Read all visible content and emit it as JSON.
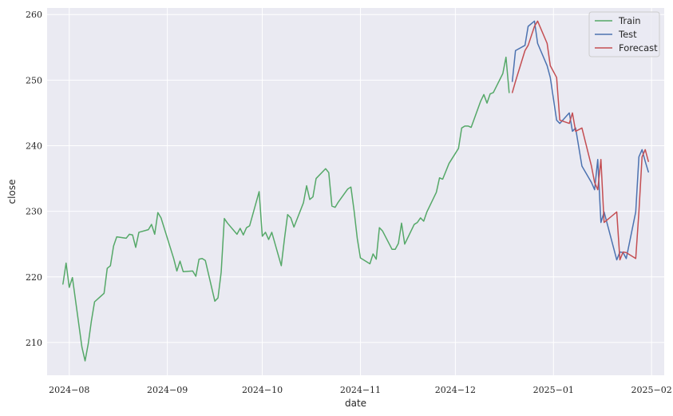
{
  "chart_data": {
    "type": "line",
    "title": "",
    "xlabel": "date",
    "ylabel": "close",
    "grid": true,
    "legend_placement": "top-right",
    "xlim": [
      "2024-07-25",
      "2025-02-05"
    ],
    "ylim": [
      205,
      261
    ],
    "x_ticks": [
      {
        "date": "2024-08-01",
        "label": "2024−08"
      },
      {
        "date": "2024-09-01",
        "label": "2024−09"
      },
      {
        "date": "2024-10-01",
        "label": "2024−10"
      },
      {
        "date": "2024-11-01",
        "label": "2024−11"
      },
      {
        "date": "2024-12-01",
        "label": "2024−12"
      },
      {
        "date": "2025-01-01",
        "label": "2025−01"
      },
      {
        "date": "2025-02-01",
        "label": "2025−02"
      }
    ],
    "y_ticks": [
      210,
      220,
      230,
      240,
      250,
      260
    ],
    "series": [
      {
        "name": "Train",
        "color": "#55a868",
        "points": [
          [
            "2024-07-30",
            218.9
          ],
          [
            "2024-07-31",
            222.1
          ],
          [
            "2024-08-01",
            218.4
          ],
          [
            "2024-08-02",
            219.9
          ],
          [
            "2024-08-05",
            209.3
          ],
          [
            "2024-08-06",
            207.2
          ],
          [
            "2024-08-07",
            209.8
          ],
          [
            "2024-08-08",
            213.3
          ],
          [
            "2024-08-09",
            216.2
          ],
          [
            "2024-08-12",
            217.5
          ],
          [
            "2024-08-13",
            221.3
          ],
          [
            "2024-08-14",
            221.7
          ],
          [
            "2024-08-15",
            224.7
          ],
          [
            "2024-08-16",
            226.1
          ],
          [
            "2024-08-19",
            225.9
          ],
          [
            "2024-08-20",
            226.5
          ],
          [
            "2024-08-21",
            226.4
          ],
          [
            "2024-08-22",
            224.5
          ],
          [
            "2024-08-23",
            226.8
          ],
          [
            "2024-08-26",
            227.2
          ],
          [
            "2024-08-27",
            228.0
          ],
          [
            "2024-08-28",
            226.5
          ],
          [
            "2024-08-29",
            229.8
          ],
          [
            "2024-08-30",
            229.0
          ],
          [
            "2024-09-03",
            222.8
          ],
          [
            "2024-09-04",
            220.9
          ],
          [
            "2024-09-05",
            222.4
          ],
          [
            "2024-09-06",
            220.8
          ],
          [
            "2024-09-09",
            220.9
          ],
          [
            "2024-09-10",
            220.1
          ],
          [
            "2024-09-11",
            222.7
          ],
          [
            "2024-09-12",
            222.8
          ],
          [
            "2024-09-13",
            222.5
          ],
          [
            "2024-09-16",
            216.3
          ],
          [
            "2024-09-17",
            216.8
          ],
          [
            "2024-09-18",
            220.7
          ],
          [
            "2024-09-19",
            228.9
          ],
          [
            "2024-09-20",
            228.2
          ],
          [
            "2024-09-23",
            226.5
          ],
          [
            "2024-09-24",
            227.4
          ],
          [
            "2024-09-25",
            226.4
          ],
          [
            "2024-09-26",
            227.5
          ],
          [
            "2024-09-27",
            227.8
          ],
          [
            "2024-09-30",
            233.0
          ],
          [
            "2024-10-01",
            226.2
          ],
          [
            "2024-10-02",
            226.8
          ],
          [
            "2024-10-03",
            225.7
          ],
          [
            "2024-10-04",
            226.8
          ],
          [
            "2024-10-07",
            221.7
          ],
          [
            "2024-10-08",
            225.8
          ],
          [
            "2024-10-09",
            229.5
          ],
          [
            "2024-10-10",
            229.0
          ],
          [
            "2024-10-11",
            227.6
          ],
          [
            "2024-10-14",
            231.3
          ],
          [
            "2024-10-15",
            233.9
          ],
          [
            "2024-10-16",
            231.8
          ],
          [
            "2024-10-17",
            232.2
          ],
          [
            "2024-10-18",
            235.0
          ],
          [
            "2024-10-21",
            236.5
          ],
          [
            "2024-10-22",
            235.9
          ],
          [
            "2024-10-23",
            230.8
          ],
          [
            "2024-10-24",
            230.6
          ],
          [
            "2024-10-25",
            231.4
          ],
          [
            "2024-10-28",
            233.4
          ],
          [
            "2024-10-29",
            233.7
          ],
          [
            "2024-10-30",
            230.1
          ],
          [
            "2024-10-31",
            225.9
          ],
          [
            "2024-11-01",
            222.9
          ],
          [
            "2024-11-04",
            222.0
          ],
          [
            "2024-11-05",
            223.5
          ],
          [
            "2024-11-06",
            222.7
          ],
          [
            "2024-11-07",
            227.5
          ],
          [
            "2024-11-08",
            227.0
          ],
          [
            "2024-11-11",
            224.2
          ],
          [
            "2024-11-12",
            224.2
          ],
          [
            "2024-11-13",
            225.1
          ],
          [
            "2024-11-14",
            228.2
          ],
          [
            "2024-11-15",
            225.0
          ],
          [
            "2024-11-18",
            228.0
          ],
          [
            "2024-11-19",
            228.3
          ],
          [
            "2024-11-20",
            229.0
          ],
          [
            "2024-11-21",
            228.5
          ],
          [
            "2024-11-22",
            229.9
          ],
          [
            "2024-11-25",
            232.9
          ],
          [
            "2024-11-26",
            235.1
          ],
          [
            "2024-11-27",
            234.9
          ],
          [
            "2024-11-29",
            237.3
          ],
          [
            "2024-12-02",
            239.6
          ],
          [
            "2024-12-03",
            242.7
          ],
          [
            "2024-12-04",
            243.0
          ],
          [
            "2024-12-05",
            243.0
          ],
          [
            "2024-12-06",
            242.8
          ],
          [
            "2024-12-09",
            246.8
          ],
          [
            "2024-12-10",
            247.8
          ],
          [
            "2024-12-11",
            246.5
          ],
          [
            "2024-12-12",
            247.9
          ],
          [
            "2024-12-13",
            248.1
          ],
          [
            "2024-12-16",
            251.0
          ],
          [
            "2024-12-17",
            253.5
          ],
          [
            "2024-12-18",
            248.1
          ]
        ]
      },
      {
        "name": "Test",
        "color": "#4c72b0",
        "points": [
          [
            "2024-12-19",
            249.8
          ],
          [
            "2024-12-20",
            254.5
          ],
          [
            "2024-12-23",
            255.3
          ],
          [
            "2024-12-24",
            258.2
          ],
          [
            "2024-12-26",
            259.0
          ],
          [
            "2024-12-27",
            255.6
          ],
          [
            "2024-12-30",
            252.2
          ],
          [
            "2024-12-31",
            250.4
          ],
          [
            "2025-01-02",
            243.9
          ],
          [
            "2025-01-03",
            243.4
          ],
          [
            "2025-01-06",
            245.0
          ],
          [
            "2025-01-07",
            242.2
          ],
          [
            "2025-01-08",
            242.7
          ],
          [
            "2025-01-10",
            236.9
          ],
          [
            "2025-01-13",
            234.4
          ],
          [
            "2025-01-14",
            233.3
          ],
          [
            "2025-01-15",
            237.9
          ],
          [
            "2025-01-16",
            228.3
          ],
          [
            "2025-01-17",
            229.9
          ],
          [
            "2025-01-21",
            222.6
          ],
          [
            "2025-01-22",
            223.8
          ],
          [
            "2025-01-23",
            223.7
          ],
          [
            "2025-01-24",
            222.8
          ],
          [
            "2025-01-27",
            229.9
          ],
          [
            "2025-01-28",
            238.3
          ],
          [
            "2025-01-29",
            239.4
          ],
          [
            "2025-01-30",
            237.6
          ],
          [
            "2025-01-31",
            236.0
          ]
        ]
      },
      {
        "name": "Forecast",
        "color": "#c44e52",
        "points": [
          [
            "2024-12-19",
            248.1
          ],
          [
            "2024-12-20",
            249.8
          ],
          [
            "2024-12-23",
            254.5
          ],
          [
            "2024-12-24",
            255.3
          ],
          [
            "2024-12-26",
            258.2
          ],
          [
            "2024-12-27",
            259.0
          ],
          [
            "2024-12-30",
            255.6
          ],
          [
            "2024-12-31",
            252.2
          ],
          [
            "2025-01-02",
            250.4
          ],
          [
            "2025-01-03",
            243.9
          ],
          [
            "2025-01-06",
            243.4
          ],
          [
            "2025-01-07",
            245.0
          ],
          [
            "2025-01-08",
            242.2
          ],
          [
            "2025-01-10",
            242.7
          ],
          [
            "2025-01-13",
            236.9
          ],
          [
            "2025-01-14",
            234.4
          ],
          [
            "2025-01-15",
            233.3
          ],
          [
            "2025-01-16",
            237.9
          ],
          [
            "2025-01-17",
            228.3
          ],
          [
            "2025-01-21",
            229.9
          ],
          [
            "2025-01-22",
            222.6
          ],
          [
            "2025-01-23",
            223.8
          ],
          [
            "2025-01-24",
            223.7
          ],
          [
            "2025-01-27",
            222.8
          ],
          [
            "2025-01-28",
            229.9
          ],
          [
            "2025-01-29",
            238.3
          ],
          [
            "2025-01-30",
            239.4
          ],
          [
            "2025-01-31",
            237.6
          ]
        ]
      }
    ]
  },
  "colors": {
    "plot_background": "#eaeaf2",
    "grid": "#ffffff"
  }
}
